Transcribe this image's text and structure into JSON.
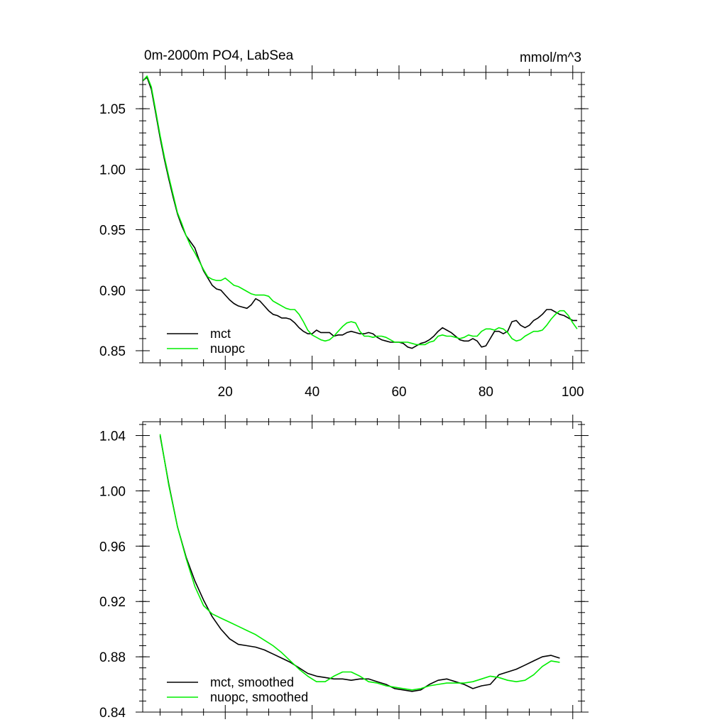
{
  "chart_data": [
    {
      "type": "line",
      "title": "0m-2000m PO4, LabSea",
      "units": "mmol/m^3",
      "xlim": [
        1,
        102
      ],
      "ylim": [
        0.84,
        1.08
      ],
      "xticks": [
        20,
        40,
        60,
        80,
        100
      ],
      "yticks": [
        0.85,
        0.9,
        0.95,
        1.0,
        1.05
      ],
      "xtick_labels": [
        "20",
        "40",
        "60",
        "80",
        "100"
      ],
      "ytick_labels": [
        "0.85",
        "0.90",
        "0.95",
        "1.00",
        "1.05"
      ],
      "legend_position": "bottom-left",
      "series": [
        {
          "name": "mct",
          "color": "#000000",
          "x": [
            1,
            2,
            3,
            4,
            5,
            6,
            7,
            8,
            9,
            10,
            11,
            12,
            13,
            14,
            15,
            16,
            17,
            18,
            19,
            20,
            21,
            22,
            23,
            24,
            25,
            26,
            27,
            28,
            29,
            30,
            31,
            32,
            33,
            34,
            35,
            36,
            37,
            38,
            39,
            40,
            41,
            42,
            43,
            44,
            45,
            46,
            47,
            48,
            49,
            50,
            51,
            52,
            53,
            54,
            55,
            56,
            57,
            58,
            59,
            60,
            61,
            62,
            63,
            64,
            65,
            66,
            67,
            68,
            69,
            70,
            71,
            72,
            73,
            74,
            75,
            76,
            77,
            78,
            79,
            80,
            81,
            82,
            83,
            84,
            85,
            86,
            87,
            88,
            89,
            90,
            91,
            92,
            93,
            94,
            95,
            96,
            97,
            98,
            99,
            100,
            101
          ],
          "values": [
            1.073,
            1.076,
            1.066,
            1.046,
            1.026,
            1.008,
            0.992,
            0.977,
            0.963,
            0.953,
            0.945,
            0.94,
            0.935,
            0.925,
            0.916,
            0.91,
            0.904,
            0.901,
            0.9,
            0.896,
            0.892,
            0.889,
            0.887,
            0.886,
            0.885,
            0.888,
            0.893,
            0.891,
            0.887,
            0.883,
            0.88,
            0.879,
            0.877,
            0.877,
            0.876,
            0.873,
            0.869,
            0.866,
            0.864,
            0.864,
            0.867,
            0.865,
            0.865,
            0.865,
            0.862,
            0.863,
            0.863,
            0.865,
            0.866,
            0.865,
            0.864,
            0.864,
            0.865,
            0.864,
            0.861,
            0.859,
            0.858,
            0.857,
            0.857,
            0.857,
            0.856,
            0.853,
            0.852,
            0.854,
            0.856,
            0.857,
            0.859,
            0.862,
            0.866,
            0.869,
            0.867,
            0.865,
            0.862,
            0.859,
            0.858,
            0.858,
            0.86,
            0.858,
            0.853,
            0.854,
            0.86,
            0.866,
            0.866,
            0.864,
            0.866,
            0.874,
            0.875,
            0.871,
            0.869,
            0.871,
            0.875,
            0.877,
            0.88,
            0.884,
            0.884,
            0.882,
            0.88,
            0.879,
            0.877,
            0.875,
            0.875
          ]
        },
        {
          "name": "nuopc",
          "color": "#00ee00",
          "x": [
            1,
            2,
            3,
            4,
            5,
            6,
            7,
            8,
            9,
            10,
            11,
            12,
            13,
            14,
            15,
            16,
            17,
            18,
            19,
            20,
            21,
            22,
            23,
            24,
            25,
            26,
            27,
            28,
            29,
            30,
            31,
            32,
            33,
            34,
            35,
            36,
            37,
            38,
            39,
            40,
            41,
            42,
            43,
            44,
            45,
            46,
            47,
            48,
            49,
            50,
            51,
            52,
            53,
            54,
            55,
            56,
            57,
            58,
            59,
            60,
            61,
            62,
            63,
            64,
            65,
            66,
            67,
            68,
            69,
            70,
            71,
            72,
            73,
            74,
            75,
            76,
            77,
            78,
            79,
            80,
            81,
            82,
            83,
            84,
            85,
            86,
            87,
            88,
            89,
            90,
            91,
            92,
            93,
            94,
            95,
            96,
            97,
            98,
            99,
            100,
            101
          ],
          "values": [
            1.073,
            1.077,
            1.068,
            1.048,
            1.028,
            1.01,
            0.994,
            0.979,
            0.964,
            0.955,
            0.945,
            0.937,
            0.931,
            0.924,
            0.917,
            0.911,
            0.909,
            0.908,
            0.908,
            0.91,
            0.907,
            0.904,
            0.903,
            0.901,
            0.899,
            0.897,
            0.896,
            0.896,
            0.896,
            0.895,
            0.891,
            0.889,
            0.887,
            0.885,
            0.884,
            0.884,
            0.88,
            0.874,
            0.867,
            0.863,
            0.861,
            0.859,
            0.858,
            0.859,
            0.862,
            0.866,
            0.87,
            0.873,
            0.874,
            0.873,
            0.866,
            0.862,
            0.862,
            0.861,
            0.862,
            0.862,
            0.861,
            0.859,
            0.857,
            0.857,
            0.857,
            0.857,
            0.856,
            0.855,
            0.855,
            0.855,
            0.857,
            0.858,
            0.862,
            0.863,
            0.862,
            0.862,
            0.861,
            0.86,
            0.861,
            0.863,
            0.862,
            0.862,
            0.866,
            0.868,
            0.868,
            0.867,
            0.869,
            0.868,
            0.865,
            0.86,
            0.858,
            0.859,
            0.862,
            0.864,
            0.866,
            0.866,
            0.867,
            0.871,
            0.876,
            0.88,
            0.883,
            0.883,
            0.879,
            0.873,
            0.868
          ]
        }
      ]
    },
    {
      "type": "line",
      "title": "",
      "xlim": [
        1,
        102
      ],
      "ylim": [
        0.84,
        1.05
      ],
      "xticks": [
        20,
        40,
        60,
        80,
        100
      ],
      "yticks": [
        0.84,
        0.88,
        0.92,
        0.96,
        1.0,
        1.04
      ],
      "ytick_labels": [
        "0.84",
        "0.88",
        "0.92",
        "0.96",
        "1.00",
        "1.04"
      ],
      "legend_position": "bottom-left",
      "series": [
        {
          "name": "mct, smoothed",
          "color": "#000000",
          "x": [
            5,
            7,
            9,
            11,
            13,
            15,
            17,
            19,
            21,
            23,
            25,
            27,
            29,
            31,
            33,
            35,
            37,
            39,
            41,
            43,
            45,
            47,
            49,
            51,
            53,
            55,
            57,
            59,
            61,
            63,
            65,
            67,
            69,
            71,
            73,
            75,
            77,
            79,
            81,
            83,
            85,
            87,
            89,
            91,
            93,
            95,
            97
          ],
          "values": [
            1.04,
            1.005,
            0.974,
            0.952,
            0.935,
            0.921,
            0.909,
            0.9,
            0.893,
            0.889,
            0.888,
            0.887,
            0.885,
            0.882,
            0.879,
            0.876,
            0.872,
            0.868,
            0.866,
            0.865,
            0.864,
            0.864,
            0.863,
            0.864,
            0.864,
            0.862,
            0.86,
            0.857,
            0.856,
            0.855,
            0.856,
            0.86,
            0.863,
            0.864,
            0.862,
            0.86,
            0.857,
            0.859,
            0.86,
            0.867,
            0.869,
            0.871,
            0.874,
            0.877,
            0.88,
            0.881,
            0.879
          ]
        },
        {
          "name": "nuopc, smoothed",
          "color": "#00ee00",
          "x": [
            5,
            7,
            9,
            11,
            13,
            15,
            17,
            19,
            21,
            23,
            25,
            27,
            29,
            31,
            33,
            35,
            37,
            39,
            41,
            43,
            45,
            47,
            49,
            51,
            53,
            55,
            57,
            59,
            61,
            63,
            65,
            67,
            69,
            71,
            73,
            75,
            77,
            79,
            81,
            83,
            85,
            87,
            89,
            91,
            93,
            95,
            97
          ],
          "values": [
            1.041,
            1.004,
            0.974,
            0.951,
            0.931,
            0.917,
            0.911,
            0.908,
            0.905,
            0.902,
            0.899,
            0.896,
            0.892,
            0.888,
            0.883,
            0.877,
            0.871,
            0.866,
            0.862,
            0.862,
            0.866,
            0.869,
            0.869,
            0.866,
            0.862,
            0.861,
            0.859,
            0.858,
            0.857,
            0.856,
            0.857,
            0.859,
            0.86,
            0.861,
            0.861,
            0.861,
            0.862,
            0.864,
            0.866,
            0.865,
            0.863,
            0.862,
            0.863,
            0.867,
            0.873,
            0.877,
            0.876
          ]
        }
      ]
    }
  ]
}
